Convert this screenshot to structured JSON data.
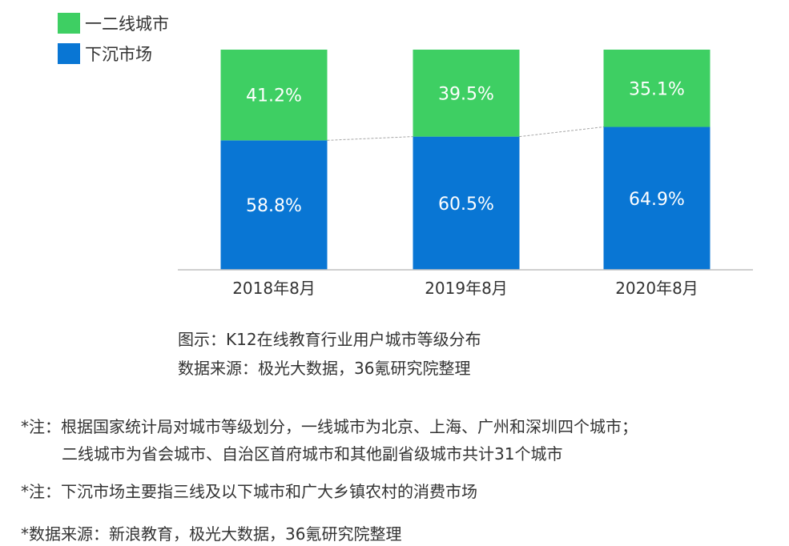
{
  "chart_data": {
    "type": "bar",
    "stacked": true,
    "categories": [
      "2018年8月",
      "2019年8月",
      "2020年8月"
    ],
    "series": [
      {
        "name": "下沉市场",
        "values": [
          58.8,
          60.5,
          64.9
        ],
        "labels": [
          "58.8%",
          "60.5%",
          "64.9%"
        ],
        "color": "#0976d4"
      },
      {
        "name": "一二线城市",
        "values": [
          41.2,
          39.5,
          35.1
        ],
        "labels": [
          "41.2%",
          "39.5%",
          "35.1%"
        ],
        "color": "#3ecf63"
      }
    ],
    "ylim": [
      0,
      100
    ],
    "grid": false,
    "legend": "top-left",
    "connector_lines": true
  },
  "captions": {
    "figure": "图示：K12在线教育行业用户城市等级分布",
    "source": "数据来源：极光大数据，36氪研究院整理"
  },
  "notes": {
    "note1_line1": "*注：根据国家统计局对城市等级划分，一线城市为北京、上海、广州和深圳四个城市；",
    "note1_line2": "二线城市为省会城市、自治区首府城市和其他副省级城市共计31个城市",
    "note2": "*注：下沉市场主要指三线及以下城市和广大乡镇农村的消费市场",
    "note3": "*数据来源：新浪教育，极光大数据，36氪研究院整理"
  }
}
